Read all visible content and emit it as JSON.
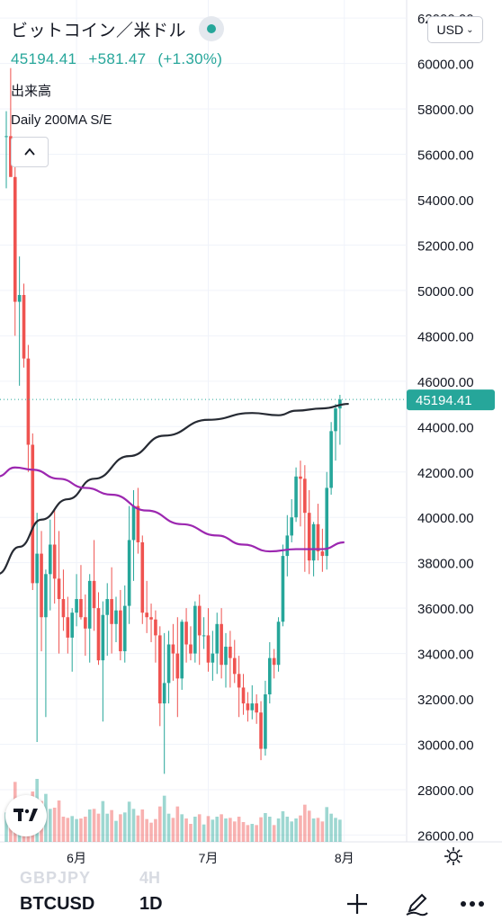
{
  "header": {
    "symbol_title": "ビットコイン／米ドル",
    "last_price": "45194.41",
    "change": "+581.47",
    "change_pct": "(+1.30%)",
    "volume_label": "出来高",
    "study_label": "Daily 200MA S/E",
    "currency": "USD"
  },
  "bottom_bar": {
    "ghost_symbol": "GBPJPY",
    "ghost_interval": "4H",
    "symbol": "BTCUSD",
    "interval": "1D"
  },
  "icons": {
    "status": "green-dot-icon",
    "collapse": "chevron-up-icon",
    "logo": "tradingview-logo-icon",
    "settings": "gear-icon",
    "add": "plus-icon",
    "draw": "pen-icon",
    "more": "more-dots-icon"
  },
  "colors": {
    "up": "#26a69a",
    "down": "#ef5350",
    "ma200": "#262a33",
    "ma_purple": "#9c27b0",
    "last_price_label": "#26a69a"
  },
  "chart_data": {
    "type": "candlestick",
    "ylim": [
      25700,
      62800
    ],
    "y_ticks": [
      "26000.00",
      "28000.00",
      "30000.00",
      "32000.00",
      "34000.00",
      "36000.00",
      "38000.00",
      "40000.00",
      "42000.00",
      "44000.00",
      "46000.00",
      "48000.00",
      "50000.00",
      "52000.00",
      "54000.00",
      "56000.00",
      "58000.00",
      "60000.00",
      "62000.00"
    ],
    "x_labels": [
      {
        "label": "6月",
        "index": 16
      },
      {
        "label": "7月",
        "index": 46
      },
      {
        "label": "8月",
        "index": 77
      }
    ],
    "last_price": 45194.41,
    "last_price_label": "45194.41",
    "candles": [
      [
        56800,
        57900,
        54500,
        56800
      ],
      [
        56800,
        59800,
        55200,
        55000
      ],
      [
        55000,
        56500,
        48000,
        49500
      ],
      [
        49500,
        51500,
        45800,
        49800
      ],
      [
        49800,
        50300,
        46600,
        47000
      ],
      [
        47000,
        47600,
        42000,
        43200
      ],
      [
        43200,
        43700,
        36800,
        37100
      ],
      [
        37100,
        40200,
        30100,
        38400
      ],
      [
        38400,
        39400,
        34100,
        35600
      ],
      [
        35600,
        37700,
        31200,
        37500
      ],
      [
        37500,
        39900,
        35900,
        38800
      ],
      [
        38800,
        40400,
        36200,
        37300
      ],
      [
        37300,
        39400,
        34000,
        36400
      ],
      [
        36400,
        37700,
        35000,
        35600
      ],
      [
        35600,
        36500,
        34000,
        34700
      ],
      [
        34700,
        36000,
        33200,
        35800
      ],
      [
        35800,
        37500,
        35200,
        36400
      ],
      [
        36400,
        37900,
        35500,
        35600
      ],
      [
        35600,
        36600,
        33900,
        35100
      ],
      [
        35100,
        37500,
        33600,
        37200
      ],
      [
        37200,
        39000,
        35000,
        36000
      ],
      [
        36000,
        36700,
        33500,
        33700
      ],
      [
        33700,
        36300,
        31000,
        35700
      ],
      [
        35700,
        37100,
        33900,
        36400
      ],
      [
        36400,
        37800,
        34000,
        35300
      ],
      [
        35300,
        36500,
        34500,
        35900
      ],
      [
        35900,
        36800,
        33700,
        34100
      ],
      [
        34100,
        37000,
        33600,
        36100
      ],
      [
        36100,
        40500,
        35300,
        39000
      ],
      [
        39000,
        41200,
        37200,
        40500
      ],
      [
        40500,
        41300,
        38400,
        38900
      ],
      [
        38900,
        39200,
        35300,
        35800
      ],
      [
        35800,
        37200,
        34900,
        35600
      ],
      [
        35600,
        36200,
        34500,
        35500
      ],
      [
        35500,
        35900,
        33600,
        34800
      ],
      [
        34800,
        35200,
        30800,
        31800
      ],
      [
        31800,
        34900,
        28700,
        32700
      ],
      [
        32700,
        35000,
        31800,
        34400
      ],
      [
        34400,
        35300,
        32800,
        34000
      ],
      [
        34000,
        35600,
        31200,
        32900
      ],
      [
        32900,
        35500,
        32400,
        35400
      ],
      [
        35400,
        36000,
        33600,
        34400
      ],
      [
        34400,
        35200,
        33700,
        34000
      ],
      [
        34000,
        36300,
        33600,
        36100
      ],
      [
        36100,
        36600,
        33500,
        34800
      ],
      [
        34800,
        35600,
        34200,
        34800
      ],
      [
        34800,
        36000,
        33200,
        33600
      ],
      [
        33600,
        35000,
        32800,
        34000
      ],
      [
        34000,
        35800,
        33100,
        35300
      ],
      [
        35300,
        36000,
        32900,
        33500
      ],
      [
        33500,
        34900,
        32500,
        34300
      ],
      [
        34300,
        35000,
        32500,
        33800
      ],
      [
        33800,
        34600,
        32700,
        33100
      ],
      [
        33100,
        33900,
        31200,
        32500
      ],
      [
        32500,
        33100,
        31300,
        31800
      ],
      [
        31800,
        32300,
        31000,
        31500
      ],
      [
        31500,
        32600,
        31100,
        31800
      ],
      [
        31800,
        32200,
        30900,
        31400
      ],
      [
        31400,
        31900,
        29300,
        29800
      ],
      [
        29800,
        32800,
        29500,
        32200
      ],
      [
        32200,
        34500,
        31800,
        33800
      ],
      [
        33800,
        34200,
        32900,
        33500
      ],
      [
        33500,
        35600,
        33200,
        35400
      ],
      [
        35400,
        38800,
        35200,
        38300
      ],
      [
        38300,
        40100,
        37400,
        39200
      ],
      [
        39200,
        40800,
        38900,
        40000
      ],
      [
        40000,
        42200,
        39800,
        41800
      ],
      [
        41800,
        42500,
        39600,
        41700
      ],
      [
        41700,
        42300,
        37600,
        40200
      ],
      [
        40200,
        41200,
        37500,
        38100
      ],
      [
        38100,
        39800,
        37400,
        39700
      ],
      [
        39700,
        40600,
        38100,
        38500
      ],
      [
        38500,
        39500,
        37600,
        38300
      ],
      [
        38300,
        42000,
        37700,
        41300
      ],
      [
        41300,
        44200,
        41000,
        43800
      ],
      [
        43800,
        45000,
        42500,
        44800
      ],
      [
        44800,
        45400,
        43200,
        45194
      ]
    ],
    "series": [
      {
        "name": "Daily 200MA S/E",
        "color": "#262a33",
        "points": [
          [
            -2,
            37500
          ],
          [
            3,
            38700
          ],
          [
            8,
            39900
          ],
          [
            14,
            40800
          ],
          [
            20,
            41700
          ],
          [
            28,
            42700
          ],
          [
            36,
            43600
          ],
          [
            46,
            44300
          ],
          [
            56,
            44600
          ],
          [
            62,
            44500
          ],
          [
            66,
            44700
          ],
          [
            72,
            44800
          ],
          [
            78,
            45000
          ]
        ]
      },
      {
        "name": "",
        "color": "#9c27b0",
        "points": [
          [
            -2,
            41800
          ],
          [
            2,
            42200
          ],
          [
            6,
            42100
          ],
          [
            12,
            41700
          ],
          [
            18,
            41300
          ],
          [
            24,
            41000
          ],
          [
            32,
            40300
          ],
          [
            40,
            39700
          ],
          [
            48,
            39200
          ],
          [
            54,
            38800
          ],
          [
            60,
            38500
          ],
          [
            66,
            38600
          ],
          [
            72,
            38600
          ],
          [
            77,
            38900
          ]
        ]
      }
    ]
  }
}
